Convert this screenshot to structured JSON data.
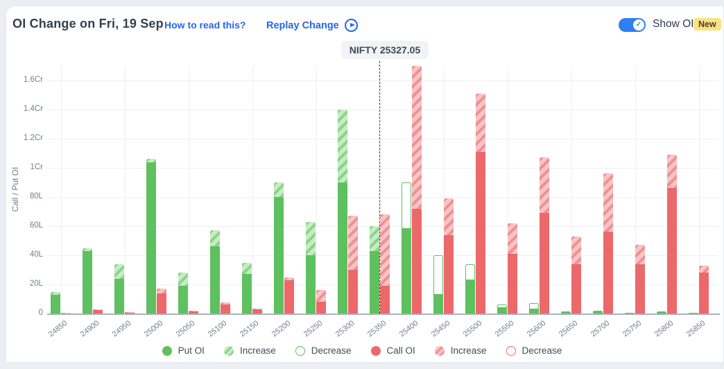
{
  "header": {
    "title": "OI Change on Fri, 19 Sep",
    "how_to_read_label": "How to read this?",
    "replay_label": "Replay Change",
    "show_oi_label": "Show OI",
    "new_badge_label": "New",
    "show_oi_on": true,
    "toggle_check": "✓"
  },
  "reference": {
    "label": "NIFTY 25327.05",
    "value": 25327.05
  },
  "legend": {
    "items": [
      {
        "label": "Put OI",
        "swatch": "green-solid"
      },
      {
        "label": "Increase",
        "swatch": "green-hatch"
      },
      {
        "label": "Decrease",
        "swatch": "green-outline"
      },
      {
        "label": "Call OI",
        "swatch": "red-solid"
      },
      {
        "label": "Increase",
        "swatch": "red-hatch"
      },
      {
        "label": "Decrease",
        "swatch": "red-outline"
      }
    ]
  },
  "colors": {
    "put_green": "#5ec05e",
    "call_red": "#ed686a",
    "link_blue": "#2466eb",
    "toggle_blue": "#2e7ff2",
    "badge_yellow": "#fbe283",
    "grid": "#edeff5",
    "axis": "#a9b1bd"
  },
  "chart_data": {
    "type": "bar",
    "title": "OI Change on Fri, 19 Sep",
    "ylabel": "Call / Put OI",
    "xlabel": "",
    "unit": "lakh (L), 1Cr = 100L",
    "ylim": [
      0,
      170
    ],
    "grid": true,
    "legend_position": "bottom",
    "y_ticks": [
      "0",
      "20L",
      "40L",
      "60L",
      "80L",
      "1Cr",
      "1.2Cr",
      "1.4Cr",
      "1.6Cr"
    ],
    "categories": [
      "24850",
      "24900",
      "24950",
      "25000",
      "25050",
      "25100",
      "25150",
      "25200",
      "25250",
      "25300",
      "25350",
      "25400",
      "25450",
      "25500",
      "25550",
      "25600",
      "25650",
      "25700",
      "25750",
      "25800",
      "25850"
    ],
    "reference_line": {
      "label": "NIFTY 25327.05",
      "x": 25327.05
    },
    "series": [
      {
        "name": "Put OI",
        "note": "base = solid green level in lakhs; extent = top of hatched increase or hollow decrease segment",
        "bars": [
          {
            "base": 13,
            "change": "increase",
            "extent": 15
          },
          {
            "base": 43,
            "change": "increase",
            "extent": 45
          },
          {
            "base": 24,
            "change": "increase",
            "extent": 34
          },
          {
            "base": 104,
            "change": "increase",
            "extent": 106
          },
          {
            "base": 19,
            "change": "increase",
            "extent": 28
          },
          {
            "base": 46,
            "change": "increase",
            "extent": 57
          },
          {
            "base": 27,
            "change": "increase",
            "extent": 35
          },
          {
            "base": 80,
            "change": "increase",
            "extent": 90
          },
          {
            "base": 40,
            "change": "increase",
            "extent": 63
          },
          {
            "base": 90,
            "change": "increase",
            "extent": 140
          },
          {
            "base": 43,
            "change": "increase",
            "extent": 60
          },
          {
            "base": 58,
            "change": "decrease",
            "extent": 90
          },
          {
            "base": 13,
            "change": "decrease",
            "extent": 40
          },
          {
            "base": 23,
            "change": "decrease",
            "extent": 34
          },
          {
            "base": 4,
            "change": "decrease",
            "extent": 6
          },
          {
            "base": 3,
            "change": "decrease",
            "extent": 7
          },
          {
            "base": 1.5,
            "change": "none",
            "extent": 1.5
          },
          {
            "base": 2,
            "change": "none",
            "extent": 2
          },
          {
            "base": 0.5,
            "change": "none",
            "extent": 0.5
          },
          {
            "base": 1.5,
            "change": "none",
            "extent": 1.5
          },
          {
            "base": 0.5,
            "change": "none",
            "extent": 0.5
          }
        ]
      },
      {
        "name": "Call OI",
        "note": "base = solid red level in lakhs; extent = top of hatched increase segment",
        "bars": [
          {
            "base": 0.4,
            "change": "increase",
            "extent": 0.7
          },
          {
            "base": 2.2,
            "change": "increase",
            "extent": 2.7
          },
          {
            "base": 0.8,
            "change": "increase",
            "extent": 1
          },
          {
            "base": 14,
            "change": "increase",
            "extent": 17
          },
          {
            "base": 1.3,
            "change": "increase",
            "extent": 1.7
          },
          {
            "base": 6,
            "change": "increase",
            "extent": 7.5
          },
          {
            "base": 3,
            "change": "increase",
            "extent": 3.5
          },
          {
            "base": 23,
            "change": "increase",
            "extent": 25
          },
          {
            "base": 8,
            "change": "increase",
            "extent": 16
          },
          {
            "base": 30,
            "change": "increase",
            "extent": 67
          },
          {
            "base": 19,
            "change": "increase",
            "extent": 68
          },
          {
            "base": 72,
            "change": "increase",
            "extent": 170
          },
          {
            "base": 54,
            "change": "increase",
            "extent": 79
          },
          {
            "base": 111,
            "change": "increase",
            "extent": 151
          },
          {
            "base": 41,
            "change": "increase",
            "extent": 62
          },
          {
            "base": 69,
            "change": "increase",
            "extent": 107
          },
          {
            "base": 34,
            "change": "increase",
            "extent": 53
          },
          {
            "base": 56,
            "change": "increase",
            "extent": 96
          },
          {
            "base": 34,
            "change": "increase",
            "extent": 47
          },
          {
            "base": 86,
            "change": "increase",
            "extent": 109
          },
          {
            "base": 28,
            "change": "increase",
            "extent": 33
          }
        ]
      }
    ]
  }
}
